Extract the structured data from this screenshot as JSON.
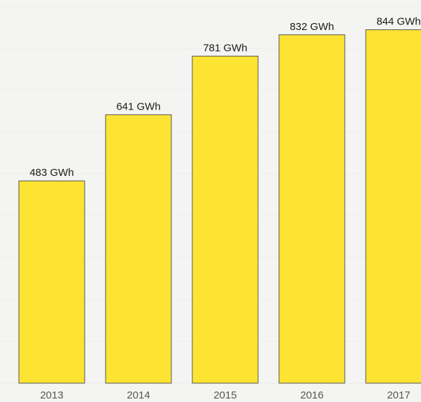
{
  "chart_data": {
    "type": "bar",
    "categories": [
      "2013",
      "2014",
      "2015",
      "2016",
      "2017"
    ],
    "values": [
      483,
      641,
      781,
      832,
      844
    ],
    "data_labels": [
      "483 GWh",
      "641 GWh",
      "781 GWh",
      "832 GWh",
      "844 GWh"
    ],
    "unit": "GWh",
    "title": "",
    "xlabel": "",
    "ylabel": "",
    "ylim": [
      0,
      1000
    ],
    "grid": true,
    "legend": "none",
    "bar_color": "#fde433",
    "bar_edge_color": "#555555",
    "background": "#f4f4f2"
  }
}
